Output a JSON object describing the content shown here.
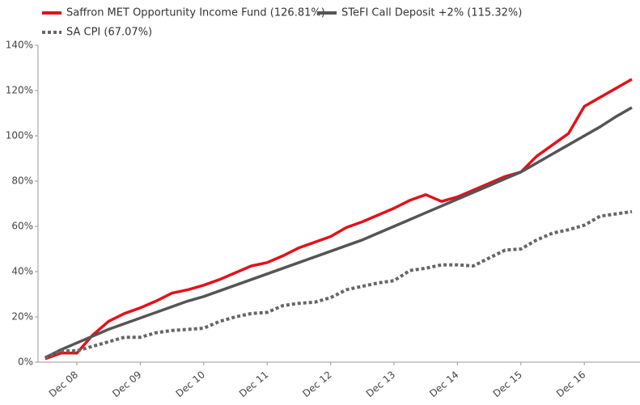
{
  "chart_data": {
    "type": "line",
    "categories": [
      null,
      null,
      "Dec 08",
      null,
      null,
      null,
      "Dec 09",
      null,
      null,
      null,
      "Dec 10",
      null,
      null,
      null,
      "Dec 11",
      null,
      null,
      null,
      "Dec 12",
      null,
      null,
      null,
      "Dec 13",
      null,
      null,
      null,
      "Dec 14",
      null,
      null,
      null,
      "Dec 15",
      null,
      null,
      null,
      "Dec 16",
      null,
      null,
      null
    ],
    "series": [
      {
        "name": "Saffron MET Opportunity Income Fund (126.81%)",
        "color": "#e3111b",
        "dash": "solid",
        "values": [
          1.5,
          4,
          4,
          12,
          18,
          21.5,
          24,
          27,
          30.5,
          32,
          34,
          36.5,
          39.5,
          42.5,
          44,
          47,
          50.5,
          53,
          55.5,
          59.5,
          62,
          65,
          68,
          71.5,
          74,
          71,
          73,
          76,
          79,
          82,
          84,
          91,
          96,
          101,
          113,
          117,
          121,
          125
        ]
      },
      {
        "name": "STeFI Call Deposit +2% (115.32%)",
        "color": "#555555",
        "dash": "solid",
        "values": [
          2,
          5.5,
          8.5,
          11.5,
          14.5,
          17,
          19.5,
          22,
          24.5,
          27,
          29,
          31.5,
          34,
          36.5,
          39,
          41.5,
          44,
          46.5,
          49,
          51.5,
          54,
          57,
          60,
          63,
          66,
          69,
          72,
          75,
          78,
          81,
          84,
          88,
          92,
          96,
          100,
          104,
          108.5,
          112.5
        ]
      },
      {
        "name": "SA CPI (67.07%)",
        "color": "#666666",
        "dash": "dotted",
        "values": [
          2,
          5,
          5,
          7,
          9,
          11,
          11,
          13,
          14,
          14.5,
          15,
          18,
          20,
          21.5,
          22,
          25,
          26,
          26.5,
          28.5,
          32,
          33.5,
          35,
          36,
          40.5,
          41.5,
          43,
          43,
          42.5,
          46,
          49.5,
          50,
          54,
          57,
          58.5,
          60.5,
          64.5,
          65.5,
          66.5
        ]
      }
    ],
    "ylim": [
      0,
      140
    ],
    "yticks": [
      {
        "value": 0,
        "label": "0%"
      },
      {
        "value": 20,
        "label": "20%"
      },
      {
        "value": 40,
        "label": "40%"
      },
      {
        "value": 60,
        "label": "60%"
      },
      {
        "value": 80,
        "label": "80%"
      },
      {
        "value": 100,
        "label": "100%"
      },
      {
        "value": 120,
        "label": "120%"
      },
      {
        "value": 140,
        "label": "140%"
      }
    ],
    "grid": false
  }
}
